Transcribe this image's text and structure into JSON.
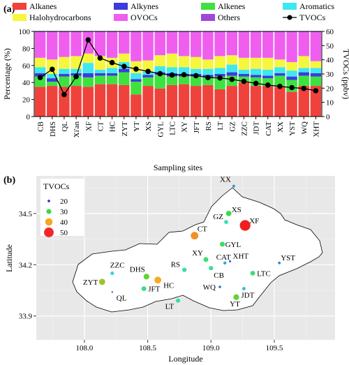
{
  "chart_data": [
    {
      "type": "bar",
      "panel_label": "(a)",
      "stacked": true,
      "categories": [
        "CB",
        "DHS",
        "QL",
        "Xi'an",
        "XF",
        "CT",
        "HC",
        "ZYT",
        "YT",
        "XS",
        "GYL",
        "LTC",
        "XY",
        "JFT",
        "RS",
        "LT",
        "GZ",
        "ZZC",
        "JDT",
        "CAT",
        "XX",
        "YST",
        "WQ",
        "XHT"
      ],
      "xlabel": "Sampling sites",
      "ylabel": "Percentage (%)",
      "ylabel_right": "TVOCs (ppbv)",
      "ylim": [
        0,
        100
      ],
      "ylim_right": [
        0,
        60
      ],
      "yticks": [
        "0",
        "20",
        "40",
        "60",
        "80",
        "100"
      ],
      "yticks_right": [
        "0",
        "10",
        "20",
        "30",
        "40",
        "50",
        "60"
      ],
      "legend_position": "top",
      "series": [
        {
          "name": "Alkanes",
          "color": "#f0423c",
          "values": [
            35,
            36,
            35,
            36,
            35,
            38,
            38,
            37,
            26,
            36,
            33,
            37,
            38,
            36,
            37,
            32,
            36,
            40,
            36,
            36,
            35,
            29,
            36,
            36
          ]
        },
        {
          "name": "Alkenes",
          "color": "#3ee23e",
          "values": [
            12,
            5,
            12,
            12,
            11,
            10,
            10,
            15,
            15,
            10,
            16,
            10,
            9,
            11,
            9,
            15,
            12,
            7,
            10,
            9,
            13,
            14,
            12,
            11
          ]
        },
        {
          "name": "Alkynes",
          "color": "#3b3bde",
          "values": [
            4,
            4,
            3,
            3,
            5,
            3,
            3,
            4,
            3,
            3,
            3,
            4,
            3,
            3,
            3,
            3,
            4,
            3,
            3,
            3,
            3,
            4,
            4,
            4
          ]
        },
        {
          "name": "Aromatics",
          "color": "#3de8f0",
          "values": [
            7,
            5,
            6,
            5,
            12,
            4,
            6,
            8,
            7,
            4,
            7,
            7,
            8,
            6,
            7,
            7,
            9,
            5,
            7,
            7,
            7,
            7,
            5,
            6
          ]
        },
        {
          "name": "Halohydrocarbons",
          "color": "#f6f63c",
          "values": [
            11,
            17,
            14,
            15,
            11,
            16,
            12,
            10,
            14,
            13,
            13,
            16,
            13,
            14,
            11,
            14,
            11,
            14,
            13,
            14,
            9,
            10,
            14,
            8
          ]
        },
        {
          "name": "OVOCs",
          "color": "#f05ef0",
          "values": [
            30,
            32,
            29,
            28,
            25,
            28,
            30,
            25,
            34,
            33,
            27,
            25,
            28,
            29,
            32,
            28,
            27,
            30,
            30,
            30,
            32,
            35,
            28,
            34
          ]
        },
        {
          "name": "Others",
          "color": "#a048d8",
          "values": [
            1,
            1,
            1,
            1,
            1,
            1,
            1,
            1,
            1,
            1,
            1,
            1,
            1,
            1,
            1,
            1,
            1,
            1,
            1,
            1,
            1,
            1,
            1,
            1
          ]
        }
      ],
      "line_series": {
        "name": "TVOCs",
        "color": "#000000",
        "values": [
          27.5,
          33.3,
          15.5,
          28.2,
          54.0,
          41.2,
          38.0,
          35.3,
          33.5,
          31.8,
          30.2,
          29.3,
          29.5,
          28.8,
          27.5,
          27.2,
          26.2,
          24.8,
          23.4,
          22.2,
          21.3,
          20.4,
          19.8,
          18.2
        ]
      }
    },
    {
      "type": "scatter",
      "panel_label": "(b)",
      "xlabel": "Longitude",
      "ylabel": "Latitude",
      "xlim": [
        107.62,
        109.98
      ],
      "ylim": [
        33.76,
        34.72
      ],
      "xticks": [
        "108.0",
        "108.5",
        "109.0",
        "109.5"
      ],
      "yticks": [
        "33.9",
        "34.2",
        "34.5"
      ],
      "legend_title": "TVOCs",
      "legend_position": "top-left",
      "legend_entries": [
        {
          "label": "20",
          "value": 20,
          "color": "#2d32d2"
        },
        {
          "label": "30",
          "value": 30,
          "color": "#3ed83e"
        },
        {
          "label": "40",
          "value": 40,
          "color": "#f5a623"
        },
        {
          "label": "50",
          "value": 50,
          "color": "#f0282a"
        }
      ],
      "points": [
        {
          "label": "XX",
          "x": 109.18,
          "y": 34.66,
          "value": 21.3
        },
        {
          "label": "XS",
          "x": 109.14,
          "y": 34.5,
          "value": 31.8
        },
        {
          "label": "GZ",
          "x": 109.12,
          "y": 34.45,
          "value": 26.2
        },
        {
          "label": "XF",
          "x": 109.27,
          "y": 34.43,
          "value": 54.0
        },
        {
          "label": "CT",
          "x": 108.87,
          "y": 34.37,
          "value": 41.2
        },
        {
          "label": "GYL",
          "x": 109.09,
          "y": 34.32,
          "value": 30.2
        },
        {
          "label": "XY",
          "x": 108.96,
          "y": 34.23,
          "value": 29.5
        },
        {
          "label": "CAT",
          "x": 109.11,
          "y": 34.21,
          "value": 22.2
        },
        {
          "label": "XHT",
          "x": 109.15,
          "y": 34.22,
          "value": 18.2
        },
        {
          "label": "YST",
          "x": 109.54,
          "y": 34.21,
          "value": 20.4
        },
        {
          "label": "ZZC",
          "x": 108.22,
          "y": 34.15,
          "value": 24.8
        },
        {
          "label": "RS",
          "x": 108.79,
          "y": 34.17,
          "value": 27.5
        },
        {
          "label": "CB",
          "x": 109.0,
          "y": 34.18,
          "value": 27.5
        },
        {
          "label": "LTC",
          "x": 109.33,
          "y": 34.15,
          "value": 29.3
        },
        {
          "label": "DHS",
          "x": 108.49,
          "y": 34.13,
          "value": 33.3
        },
        {
          "label": "HC",
          "x": 108.58,
          "y": 34.11,
          "value": 38.0
        },
        {
          "label": "ZYT",
          "x": 108.14,
          "y": 34.1,
          "value": 35.3
        },
        {
          "label": "JFT",
          "x": 108.47,
          "y": 34.06,
          "value": 28.8
        },
        {
          "label": "WQ",
          "x": 109.07,
          "y": 34.07,
          "value": 19.8
        },
        {
          "label": "JDT",
          "x": 109.26,
          "y": 34.06,
          "value": 23.4
        },
        {
          "label": "QL",
          "x": 108.22,
          "y": 34.04,
          "value": 15.5
        },
        {
          "label": "YT",
          "x": 109.2,
          "y": 34.01,
          "value": 33.5
        },
        {
          "label": "LT",
          "x": 108.74,
          "y": 33.99,
          "value": 27.2
        }
      ]
    }
  ]
}
